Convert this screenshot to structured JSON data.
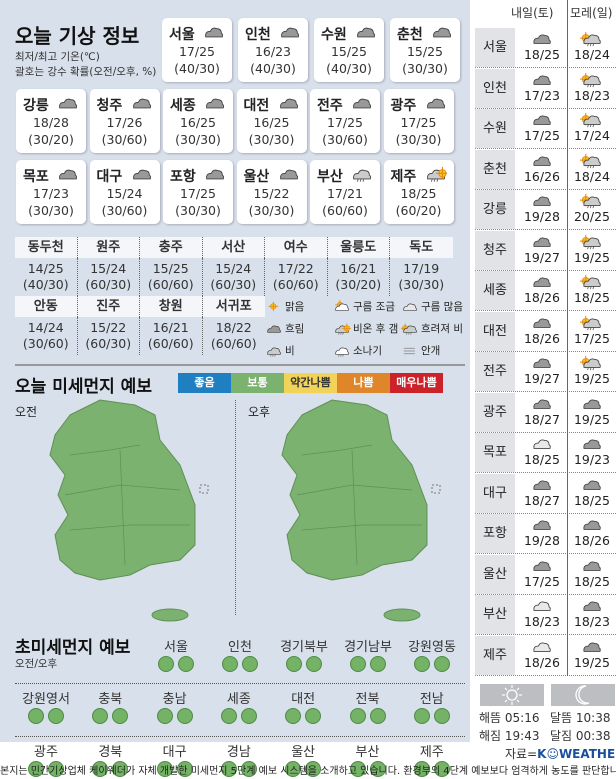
{
  "today": {
    "title": "오늘 기상 정보",
    "subtitle1": "최저/최고 기온(℃)",
    "subtitle2": "괄호는 강수 확률(오전/오후, %)",
    "cities": [
      {
        "name": "서울",
        "icon": "cloudy",
        "temp": "17/25",
        "rain": "(40/30)"
      },
      {
        "name": "인천",
        "icon": "cloudy",
        "temp": "16/23",
        "rain": "(40/30)"
      },
      {
        "name": "수원",
        "icon": "cloudy",
        "temp": "15/25",
        "rain": "(40/30)"
      },
      {
        "name": "춘천",
        "icon": "cloudy",
        "temp": "15/25",
        "rain": "(30/30)"
      },
      {
        "name": "강릉",
        "icon": "cloudy",
        "temp": "18/28",
        "rain": "(30/20)"
      },
      {
        "name": "청주",
        "icon": "cloudy",
        "temp": "17/26",
        "rain": "(30/60)"
      },
      {
        "name": "세종",
        "icon": "cloudy",
        "temp": "16/25",
        "rain": "(30/30)"
      },
      {
        "name": "대전",
        "icon": "cloudy",
        "temp": "16/25",
        "rain": "(30/30)"
      },
      {
        "name": "전주",
        "icon": "cloudy",
        "temp": "17/25",
        "rain": "(30/60)"
      },
      {
        "name": "광주",
        "icon": "cloudy",
        "temp": "17/25",
        "rain": "(30/30)"
      },
      {
        "name": "목포",
        "icon": "cloudy",
        "temp": "17/23",
        "rain": "(30/30)"
      },
      {
        "name": "대구",
        "icon": "cloudy",
        "temp": "15/24",
        "rain": "(30/60)"
      },
      {
        "name": "포항",
        "icon": "cloudy",
        "temp": "17/25",
        "rain": "(30/30)"
      },
      {
        "name": "울산",
        "icon": "cloudy",
        "temp": "15/22",
        "rain": "(30/30)"
      },
      {
        "name": "부산",
        "icon": "rain",
        "temp": "17/21",
        "rain": "(60/60)"
      },
      {
        "name": "제주",
        "icon": "rain-then-clear",
        "temp": "18/25",
        "rain": "(60/20)"
      }
    ],
    "minor": [
      {
        "name": "동두천",
        "temp": "14/25",
        "rain": "(40/30)"
      },
      {
        "name": "원주",
        "temp": "15/24",
        "rain": "(60/30)"
      },
      {
        "name": "충주",
        "temp": "15/25",
        "rain": "(60/60)"
      },
      {
        "name": "서산",
        "temp": "15/24",
        "rain": "(60/30)"
      },
      {
        "name": "여수",
        "temp": "17/22",
        "rain": "(60/60)"
      },
      {
        "name": "울릉도",
        "temp": "16/21",
        "rain": "(30/20)"
      },
      {
        "name": "독도",
        "temp": "17/19",
        "rain": "(30/30)"
      },
      {
        "name": "안동",
        "temp": "14/24",
        "rain": "(30/60)"
      },
      {
        "name": "진주",
        "temp": "15/22",
        "rain": "(60/30)"
      },
      {
        "name": "창원",
        "temp": "16/21",
        "rain": "(60/60)"
      },
      {
        "name": "서귀포",
        "temp": "18/22",
        "rain": "(60/60)"
      }
    ],
    "legend": [
      {
        "icon": "sunny",
        "label": "맑음"
      },
      {
        "icon": "partly-cloudy",
        "label": "구름 조금"
      },
      {
        "icon": "mostly-cloudy",
        "label": "구름 많음"
      },
      {
        "icon": "cloudy",
        "label": "흐림"
      },
      {
        "icon": "rain-then-clear",
        "label": "비온 후 갬"
      },
      {
        "icon": "clear-then-rain",
        "label": "흐려져 비"
      },
      {
        "icon": "rain",
        "label": "비"
      },
      {
        "icon": "shower",
        "label": "소나기"
      },
      {
        "icon": "fog",
        "label": "안개"
      }
    ]
  },
  "dust": {
    "title": "오늘 미세먼지 예보",
    "am": "오전",
    "pm": "오후",
    "scale": [
      {
        "label": "좋음",
        "color": "#1f7fc0"
      },
      {
        "label": "보통",
        "color": "#7cb26f"
      },
      {
        "label": "약간나쁨",
        "color": "#f2d35a"
      },
      {
        "label": "나쁨",
        "color": "#e0862a"
      },
      {
        "label": "매우나쁨",
        "color": "#cc2229"
      }
    ],
    "map_level": "보통"
  },
  "pm25": {
    "title": "초미세먼지 예보",
    "subtitle": "오전/오후",
    "regions": [
      "서울",
      "인천",
      "경기북부",
      "경기남부",
      "강원영동",
      "강원영서",
      "충북",
      "충남",
      "세종",
      "대전",
      "전북",
      "전남",
      "광주",
      "경북",
      "대구",
      "경남",
      "울산",
      "부산",
      "제주"
    ],
    "level_am": "보통",
    "level_pm": "보통"
  },
  "forecast": {
    "day1": "내일(토)",
    "day2": "모레(일)",
    "rows": [
      {
        "name": "서울",
        "i1": "cloudy",
        "t1": "18/25",
        "i2": "clear-then-rain",
        "t2": "18/24"
      },
      {
        "name": "인천",
        "i1": "cloudy",
        "t1": "17/23",
        "i2": "clear-then-rain",
        "t2": "18/23"
      },
      {
        "name": "수원",
        "i1": "cloudy",
        "t1": "17/25",
        "i2": "clear-then-rain",
        "t2": "17/24"
      },
      {
        "name": "춘천",
        "i1": "cloudy",
        "t1": "16/26",
        "i2": "clear-then-rain",
        "t2": "18/24"
      },
      {
        "name": "강릉",
        "i1": "cloudy",
        "t1": "19/28",
        "i2": "clear-then-rain",
        "t2": "20/25"
      },
      {
        "name": "청주",
        "i1": "cloudy",
        "t1": "19/27",
        "i2": "clear-then-rain",
        "t2": "19/25"
      },
      {
        "name": "세종",
        "i1": "cloudy",
        "t1": "18/26",
        "i2": "clear-then-rain",
        "t2": "18/25"
      },
      {
        "name": "대전",
        "i1": "cloudy",
        "t1": "18/26",
        "i2": "clear-then-rain",
        "t2": "17/25"
      },
      {
        "name": "전주",
        "i1": "cloudy",
        "t1": "19/27",
        "i2": "clear-then-rain",
        "t2": "19/25"
      },
      {
        "name": "광주",
        "i1": "cloudy",
        "t1": "18/27",
        "i2": "cloudy",
        "t2": "19/25"
      },
      {
        "name": "목포",
        "i1": "mostly-cloudy",
        "t1": "18/25",
        "i2": "cloudy",
        "t2": "19/23"
      },
      {
        "name": "대구",
        "i1": "cloudy",
        "t1": "18/27",
        "i2": "cloudy",
        "t2": "18/25"
      },
      {
        "name": "포항",
        "i1": "cloudy",
        "t1": "19/28",
        "i2": "cloudy",
        "t2": "18/26"
      },
      {
        "name": "울산",
        "i1": "cloudy",
        "t1": "17/25",
        "i2": "cloudy",
        "t2": "18/25"
      },
      {
        "name": "부산",
        "i1": "mostly-cloudy",
        "t1": "18/23",
        "i2": "cloudy",
        "t2": "18/23"
      },
      {
        "name": "제주",
        "i1": "mostly-cloudy",
        "t1": "18/26",
        "i2": "cloudy",
        "t2": "19/25"
      }
    ]
  },
  "sun_moon": {
    "sunrise": "해뜸 05:16",
    "sunset": "해짐 19:43",
    "moonrise": "달뜸 10:38",
    "moonset": "달짐 00:38"
  },
  "source": {
    "label": "자료=",
    "brand": "K☺WEATHER"
  },
  "note": "본지는 민간기상업체 케이웨더가 자체 개발한 미세먼지 5단계 예보 시스템을 소개하고 있습니다. 환경부의 4단계 예보보다 엄격하게 농도를 판단합니다."
}
